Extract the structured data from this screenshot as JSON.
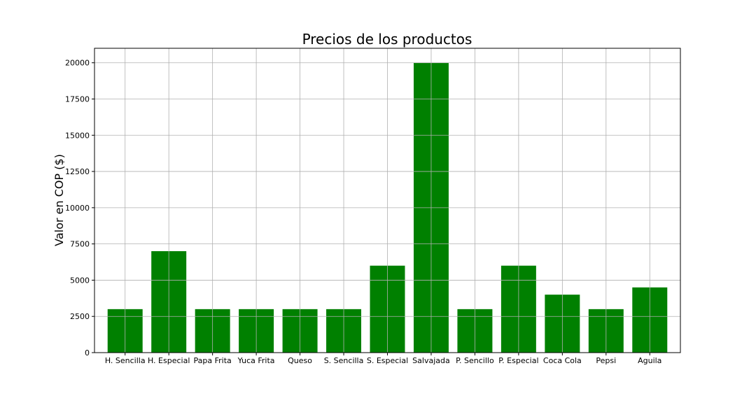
{
  "chart_data": {
    "type": "bar",
    "title": "Precios de los productos",
    "xlabel": "",
    "ylabel": "Valor en COP ($)",
    "categories": [
      "H. Sencilla",
      "H. Especial",
      "Papa Frita",
      "Yuca Frita",
      "Queso",
      "S. Sencilla",
      "S. Especial",
      "Salvajada",
      "P. Sencillo",
      "P. Especial",
      "Coca Cola",
      "Pepsi",
      "Aguila"
    ],
    "values": [
      3000,
      7000,
      3000,
      3000,
      3000,
      3000,
      6000,
      20000,
      3000,
      6000,
      4000,
      3000,
      4500
    ],
    "yticks": [
      0,
      2500,
      5000,
      7500,
      10000,
      12500,
      15000,
      17500,
      20000
    ],
    "ytick_labels": [
      "0",
      "2500",
      "5000",
      "7500",
      "10000",
      "12500",
      "15000",
      "17500",
      "20000"
    ],
    "ylim": [
      0,
      21000
    ],
    "grid": true,
    "colors": {
      "bar": "#008000",
      "grid": "#b0b0b0",
      "axis": "#000000"
    }
  }
}
